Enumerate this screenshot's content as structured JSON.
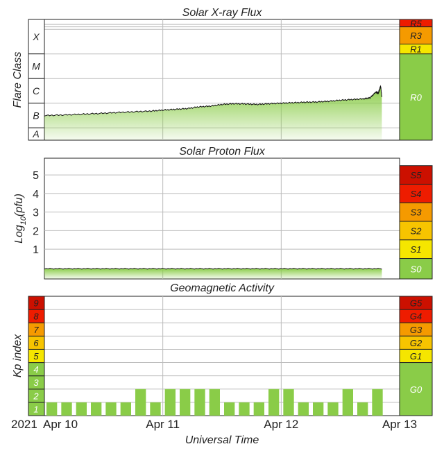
{
  "colors": {
    "green": "#8acc48",
    "yellow": "#f5e600",
    "orange_light": "#f7c400",
    "orange": "#f59a00",
    "red_orange": "#f06800",
    "red": "#ee1c00",
    "dark_red": "#cc1000",
    "grid": "#bbbbbb"
  },
  "x_axis": {
    "year_label": "2021",
    "tick_labels": [
      "Apr 10",
      "Apr 11",
      "Apr 12",
      "Apr 13"
    ],
    "xlabel": "Universal Time"
  },
  "chart_data": [
    {
      "type": "area",
      "title": "Solar X-ray Flux",
      "ylabel": "Flare Class",
      "class_labels": [
        "X",
        "M",
        "C",
        "B",
        "A"
      ],
      "log_flux_range": [
        -8.5,
        -3.6
      ],
      "x_range": [
        0,
        3
      ],
      "series": [
        {
          "points": [
            [
              0.0,
              -7.5
            ],
            [
              0.15,
              -7.48
            ],
            [
              0.3,
              -7.45
            ],
            [
              0.45,
              -7.42
            ],
            [
              0.6,
              -7.38
            ],
            [
              0.75,
              -7.35
            ],
            [
              0.9,
              -7.32
            ],
            [
              1.0,
              -7.28
            ],
            [
              1.1,
              -7.25
            ],
            [
              1.2,
              -7.22
            ],
            [
              1.3,
              -7.15
            ],
            [
              1.4,
              -7.12
            ],
            [
              1.5,
              -7.05
            ],
            [
              1.6,
              -7.02
            ],
            [
              1.7,
              -7.03
            ],
            [
              1.8,
              -7.05
            ],
            [
              1.9,
              -7.02
            ],
            [
              2.0,
              -7.0
            ],
            [
              2.1,
              -6.98
            ],
            [
              2.2,
              -6.96
            ],
            [
              2.3,
              -6.95
            ],
            [
              2.4,
              -6.92
            ],
            [
              2.5,
              -6.88
            ],
            [
              2.6,
              -6.85
            ],
            [
              2.7,
              -6.82
            ],
            [
              2.75,
              -6.78
            ],
            [
              2.8,
              -6.55
            ],
            [
              2.82,
              -6.6
            ],
            [
              2.84,
              -6.3
            ],
            [
              2.85,
              -6.75
            ]
          ]
        }
      ],
      "scale_labels": [
        "R5",
        "R3",
        "R1",
        "R0"
      ]
    },
    {
      "type": "area",
      "title": "Solar Proton Flux",
      "ylabel": "Log10(pfu)",
      "ylabel_main": "Log",
      "ylabel_sub": "10",
      "ylabel_tail": "(pfu)",
      "yticks": [
        1,
        2,
        3,
        4,
        5
      ],
      "ylim": [
        -0.6,
        5.9
      ],
      "x_range": [
        0,
        3
      ],
      "series": [
        {
          "points": [
            [
              0.0,
              -0.05
            ],
            [
              0.5,
              -0.05
            ],
            [
              1.0,
              -0.04
            ],
            [
              1.5,
              -0.05
            ],
            [
              2.0,
              -0.04
            ],
            [
              2.5,
              -0.05
            ],
            [
              2.85,
              -0.05
            ]
          ]
        }
      ],
      "scale_labels": [
        "S5",
        "S4",
        "S3",
        "S2",
        "S1",
        "S0"
      ]
    },
    {
      "type": "bar",
      "title": "Geomagnetic Activity",
      "ylabel": "Kp index",
      "kp_levels": [
        "1",
        "2",
        "3",
        "4",
        "5",
        "6",
        "7",
        "8",
        "9"
      ],
      "ylim": [
        0,
        9
      ],
      "x_range": [
        0,
        3
      ],
      "bar_interval_days": 0.125,
      "values": [
        1,
        1,
        1,
        1,
        1,
        1,
        2,
        1,
        2,
        2,
        2,
        2,
        1,
        1,
        1,
        2,
        2,
        1,
        1,
        1,
        2,
        1,
        2
      ],
      "scale_labels": [
        "G5",
        "G4",
        "G3",
        "G2",
        "G1",
        "G0"
      ]
    }
  ]
}
